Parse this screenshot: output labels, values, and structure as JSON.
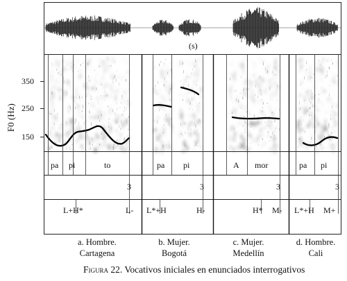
{
  "y_axis": {
    "label": "F0 (Hz)",
    "ticks": [
      "350",
      "250",
      "150"
    ]
  },
  "marker": "(s)",
  "panels": [
    {
      "id": "a",
      "syllables": [
        "pa",
        "pi",
        "to"
      ],
      "break": "3",
      "tones": [
        "L+H*",
        "L-"
      ],
      "caption_line1": "a. Hombre.",
      "caption_line2": "Cartagena"
    },
    {
      "id": "b",
      "syllables": [
        "pa",
        "pi"
      ],
      "break": "3",
      "tones": [
        "L*+H",
        "H-"
      ],
      "caption_line1": "b. Mujer.",
      "caption_line2": "Bogotá"
    },
    {
      "id": "c",
      "syllables": [
        "A",
        "mor"
      ],
      "break": "3",
      "tones": [
        "H*",
        "M-"
      ],
      "caption_line1": "c. Mujer.",
      "caption_line2": "Medellín"
    },
    {
      "id": "d",
      "syllables": [
        "pa",
        "pi"
      ],
      "break": "3",
      "tones": [
        "L*+H",
        "M+"
      ],
      "caption_line1": "d. Hombre.",
      "caption_line2": "Cali"
    }
  ],
  "figure_caption": {
    "prefix": "Figura 22.",
    "text": " Vocativos iniciales en enunciados interrogativos"
  }
}
